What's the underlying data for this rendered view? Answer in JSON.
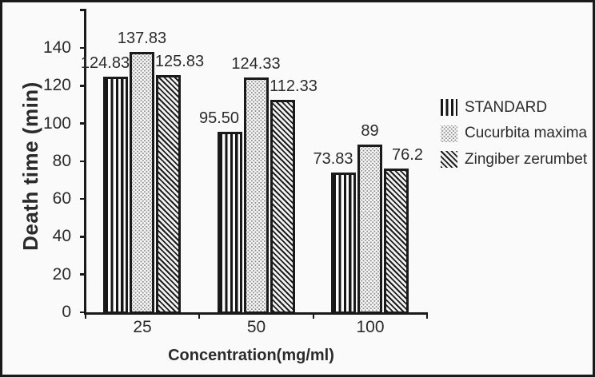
{
  "colors": {
    "ink": "#1a1a1a",
    "text": "#2b2b2b",
    "paper": "#fafafa",
    "dot_gray": "#8d8d8d"
  },
  "chart_data": {
    "type": "bar",
    "title": "",
    "xlabel": "Concentration(mg/ml)",
    "ylabel": "Death time (min)",
    "categories": [
      "25",
      "50",
      "100"
    ],
    "series": [
      {
        "name": "STANDARD",
        "pattern": "vertical-stripes",
        "values": [
          124.83,
          95.5,
          73.83
        ],
        "value_labels": [
          "124.83",
          "95.50",
          "73.83"
        ]
      },
      {
        "name": "Cucurbita maxima",
        "pattern": "dots",
        "values": [
          137.83,
          124.33,
          89
        ],
        "value_labels": [
          "137.83",
          "124.33",
          "89"
        ]
      },
      {
        "name": "Zingiber zerumbet",
        "pattern": "diagonal-stripes",
        "values": [
          125.83,
          112.33,
          76.2
        ],
        "value_labels": [
          "125.83",
          "112.33",
          "76.2"
        ]
      }
    ],
    "y_axis": {
      "ticks": [
        0,
        20,
        40,
        60,
        80,
        100,
        120,
        140
      ],
      "range": [
        0,
        160
      ],
      "unlabeled_top_tick": true
    },
    "xlim_categories": true,
    "grid": false,
    "legend_position": "right"
  }
}
